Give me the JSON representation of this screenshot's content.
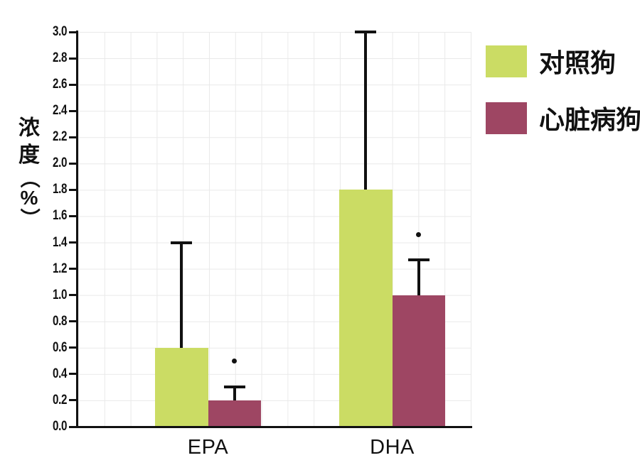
{
  "chart_data": {
    "type": "bar",
    "categories": [
      "EPA",
      "DHA"
    ],
    "series": [
      {
        "name": "对照狗",
        "color": "#cbdc64",
        "values": [
          0.6,
          1.8
        ],
        "error_top": [
          1.4,
          3.0
        ]
      },
      {
        "name": "心脏病狗",
        "color": "#9e4663",
        "values": [
          0.2,
          1.0
        ],
        "error_top": [
          0.3,
          1.27
        ],
        "marker_values": [
          0.5,
          1.46
        ]
      }
    ],
    "ylabel": "浓度（%）",
    "ylim": [
      0,
      3.0
    ],
    "ytick_step": 0.2,
    "ytick_decimals": 1,
    "grid": true,
    "legend_position": "right",
    "axis_color": "#111111",
    "grid_color": "#e9e9e9"
  }
}
